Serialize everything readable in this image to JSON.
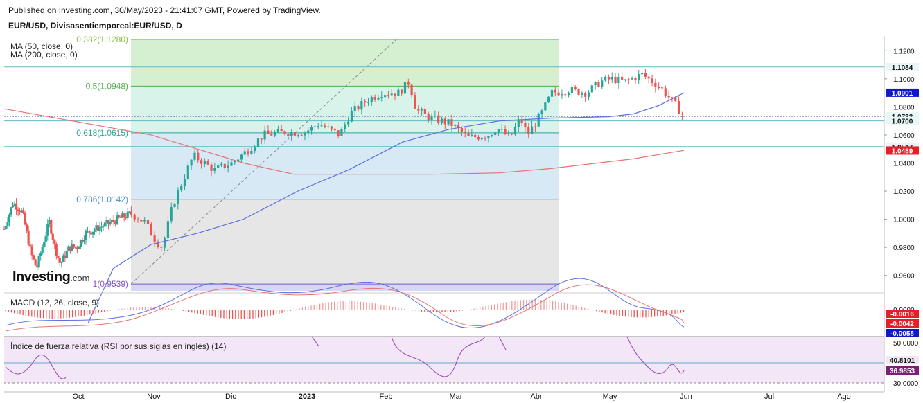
{
  "header": {
    "published": "Published on Investing.com, 30/May/2023 - 21:41:07 GMT, Powered by TradingView.",
    "instrument": "EUR/USD, Divisasentiemporeal:EUR/USD, D"
  },
  "logo": {
    "brand": "Investing",
    "suffix": ".com"
  },
  "chart_data": {
    "type": "candlestick",
    "x_tick_labels": [
      "Oct",
      "Nov",
      "Dic",
      "2023",
      "Feb",
      "Mar",
      "Abr",
      "May",
      "Jun",
      "Jul",
      "Ago"
    ],
    "price_axis": {
      "range": [
        0.949,
        1.1305
      ],
      "ticks": [
        "1.1200",
        "1.1000",
        "1.0800",
        "1.0600",
        "1.0400",
        "1.0200",
        "1.0000",
        "0.9800",
        "0.9600"
      ]
    },
    "legend": [
      "MA (50, close, 0)",
      "MA (200, close, 0)"
    ],
    "fibonacci": {
      "levels": [
        {
          "label": "0.382(1.1280)",
          "price": 1.128,
          "color": "#8bc34a"
        },
        {
          "label": "0.5(1.0948)",
          "price": 1.0948,
          "color": "#4caf50"
        },
        {
          "label": "0.618(1.0615)",
          "price": 1.0615,
          "color": "#26a69a"
        },
        {
          "label": "0.786(1.0142)",
          "price": 1.0142,
          "color": "#4a8fc7"
        },
        {
          "label": "1(0.9539)",
          "price": 0.9539,
          "color": "#7e57c2"
        }
      ]
    },
    "horizontal_lines": [
      {
        "price": 1.1084,
        "label": "1.1084"
      },
      {
        "price": 1.0517,
        "label": "1.0517"
      },
      {
        "price": 1.07,
        "label": "1.0700"
      }
    ],
    "price_badges": [
      {
        "label": "1.1084",
        "price": 1.1084,
        "bg": "#e8f6f7",
        "fg": "#111111"
      },
      {
        "label": "1.0901",
        "price": 1.0901,
        "bg": "#1018c8",
        "fg": "#ffffff"
      },
      {
        "label": "1.0733",
        "price": 1.0733,
        "bg": "#e8f6f7",
        "fg": "#111111"
      },
      {
        "label": "1.0700",
        "price": 1.07,
        "bg": "#e8f6f7",
        "fg": "#111111"
      },
      {
        "label": "1.0517",
        "price": 1.0517,
        "bg": "#e8f6f7",
        "fg": "#111111"
      },
      {
        "label": "1.0489",
        "price": 1.0489,
        "bg": "#e81d2a",
        "fg": "#ffffff"
      }
    ],
    "ma50_path": [
      [
        0.926,
        1.0
      ],
      [
        0.965,
        1.3
      ],
      [
        0.982,
        1.75
      ],
      [
        0.99,
        2.3
      ],
      [
        1.0,
        2.85
      ],
      [
        1.02,
        3.5
      ],
      [
        1.035,
        4.1
      ],
      [
        1.055,
        4.75
      ],
      [
        1.064,
        5.3
      ],
      [
        1.07,
        5.9
      ],
      [
        1.072,
        6.5
      ],
      [
        1.073,
        7.2
      ],
      [
        1.075,
        7.5
      ],
      [
        1.081,
        7.8
      ],
      [
        1.087,
        8.0
      ],
      [
        1.09,
        8.1
      ]
    ],
    "ma200_path": [
      [
        1.0786,
        0.0
      ],
      [
        1.06,
        1.75
      ],
      [
        1.04,
        2.85
      ],
      [
        1.032,
        3.45
      ],
      [
        1.032,
        5.1
      ],
      [
        1.033,
        5.9
      ],
      [
        1.036,
        6.5
      ],
      [
        1.043,
        7.5
      ],
      [
        1.049,
        8.1
      ]
    ],
    "macd": {
      "label": "MACD (12, 26, close, 9)",
      "axis_ticks": [
        "0.0000"
      ],
      "badges": [
        {
          "label": "-0.0016",
          "bg": "#e81d2a",
          "fg": "#ffffff"
        },
        {
          "label": "-0.0042",
          "bg": "#e81d2a",
          "fg": "#ffffff"
        },
        {
          "label": "-0.0058",
          "bg": "#1018c8",
          "fg": "#ffffff"
        }
      ]
    },
    "rsi": {
      "label": "Índice de fuerza relativa (RSI por sus siglas en inglés) (14)",
      "axis_ticks": [
        "50.0000",
        "30.0000"
      ],
      "badges": [
        {
          "label": "40.8101",
          "bg": "#f3e6f7",
          "fg": "#111111"
        },
        {
          "label": "36.9853",
          "bg": "#7b1f78",
          "fg": "#ffffff"
        }
      ]
    }
  },
  "colors": {
    "up": "#26a69a",
    "down": "#ef5350",
    "ma50": "#5b6ee1",
    "ma200": "#e57373",
    "rsi": "#9c4db5"
  }
}
